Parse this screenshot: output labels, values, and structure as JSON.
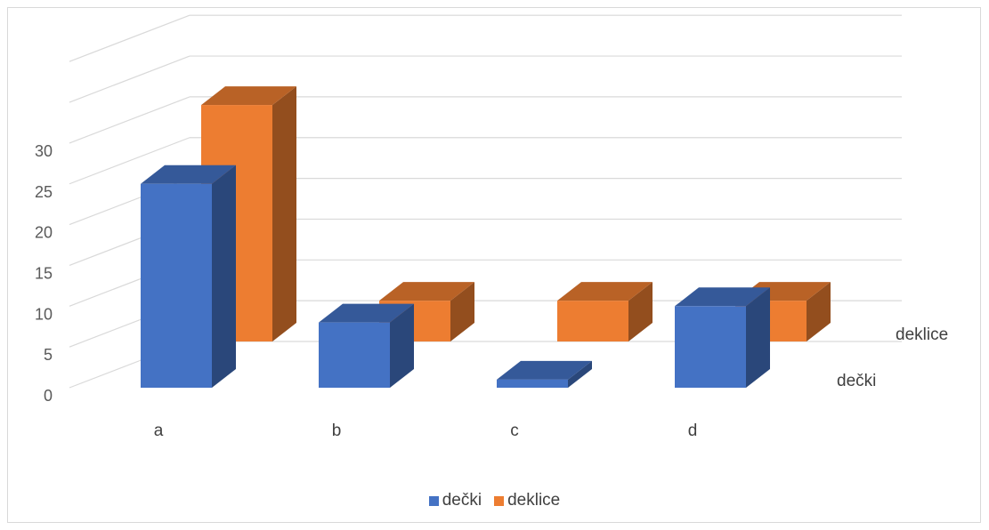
{
  "chart_data": {
    "type": "bar",
    "title": "",
    "categories": [
      "a",
      "b",
      "c",
      "d"
    ],
    "series": [
      {
        "name": "dečki",
        "values": [
          25,
          8,
          1,
          10
        ]
      },
      {
        "name": "deklice",
        "values": [
          29,
          5,
          5,
          5
        ]
      }
    ],
    "ylim": [
      0,
      30
    ],
    "y_ticks": [
      0,
      5,
      10,
      15,
      20,
      25,
      30
    ],
    "grid": true,
    "legend": "bottom",
    "depth_axis_labels": [
      "dečki",
      "deklice"
    ],
    "colors": {
      "dečki": "#4472C4",
      "deklice": "#ED7D31"
    }
  }
}
